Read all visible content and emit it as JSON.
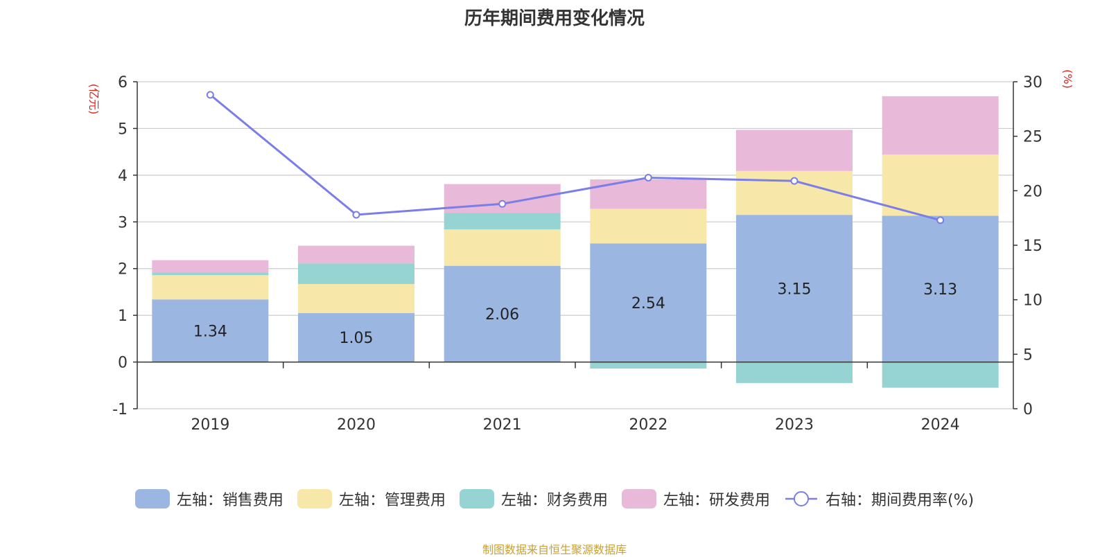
{
  "chart_data": {
    "type": "bar",
    "title": "历年期间费用变化情况",
    "categories": [
      "2019",
      "2020",
      "2021",
      "2022",
      "2023",
      "2024"
    ],
    "left_axis": {
      "unit_label": "(亿元)",
      "range": [
        -1,
        6
      ],
      "ticks": [
        "-1",
        "0",
        "1",
        "2",
        "3",
        "4",
        "5",
        "6"
      ]
    },
    "right_axis": {
      "unit_label": "(%)",
      "range": [
        0,
        30
      ],
      "ticks": [
        "0",
        "5",
        "10",
        "15",
        "20",
        "25",
        "30"
      ]
    },
    "series": [
      {
        "name": "左轴：销售费用",
        "kind": "bar",
        "axis": "left",
        "color": "#9bb6e0",
        "values": [
          1.34,
          1.05,
          2.06,
          2.54,
          3.15,
          3.13
        ],
        "data_labels": [
          "1.34",
          "1.05",
          "2.06",
          "2.54",
          "3.15",
          "3.13"
        ]
      },
      {
        "name": "左轴：管理费用",
        "kind": "bar",
        "axis": "left",
        "color": "#f7e7a8",
        "values": [
          0.52,
          0.62,
          0.78,
          0.74,
          0.94,
          1.31
        ]
      },
      {
        "name": "左轴：财务费用",
        "kind": "bar",
        "axis": "left",
        "color": "#96d4d4",
        "values": [
          0.06,
          0.44,
          0.35,
          -0.14,
          -0.45,
          -0.55
        ]
      },
      {
        "name": "左轴：研发费用",
        "kind": "bar",
        "axis": "left",
        "color": "#e8b9d8",
        "values": [
          0.26,
          0.38,
          0.62,
          0.63,
          0.88,
          1.25
        ]
      },
      {
        "name": "右轴：期间费用率(%)",
        "kind": "line",
        "axis": "right",
        "color": "#7b7de8",
        "values": [
          28.8,
          17.8,
          18.8,
          21.2,
          20.9,
          17.3
        ]
      }
    ],
    "grid": true,
    "legend_position": "bottom"
  },
  "source_note": "制图数据来自恒生聚源数据库"
}
